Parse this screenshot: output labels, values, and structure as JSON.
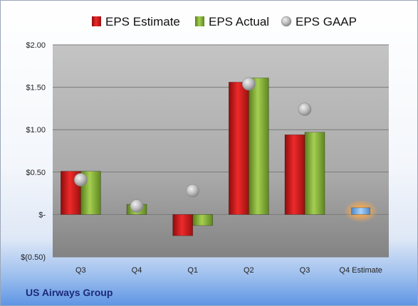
{
  "company_name": "US Airways Group",
  "chart_data": {
    "type": "bar",
    "categories": [
      "Q3",
      "Q4",
      "Q1",
      "Q2",
      "Q3",
      "Q4 Estimate"
    ],
    "series": [
      {
        "name": "EPS Estimate",
        "color": "#d01c1c",
        "values": [
          0.51,
          null,
          -0.25,
          1.56,
          0.94,
          null
        ]
      },
      {
        "name": "EPS Actual",
        "color": "#7fab2f",
        "values": [
          0.51,
          0.12,
          -0.13,
          1.61,
          0.97,
          null
        ]
      },
      {
        "name": "EPS GAAP",
        "type": "marker",
        "color": "#aeb3b9",
        "values": [
          0.41,
          0.1,
          0.28,
          1.54,
          1.24,
          null
        ]
      },
      {
        "name": "Q4 Estimate",
        "color": "#7ab4ec",
        "highlight": "#f3a34a",
        "values": [
          null,
          null,
          null,
          null,
          null,
          0.08
        ]
      }
    ],
    "y_tick_values": [
      2.0,
      1.5,
      1.0,
      0.5,
      0,
      -0.5
    ],
    "y_tick_labels": [
      "$2.00",
      "$1.50",
      "$1.00",
      "$0.50",
      "$-",
      "$(0.50)"
    ],
    "ylim": [
      -0.5,
      2.0
    ],
    "legend_position": "top",
    "grid": true
  }
}
